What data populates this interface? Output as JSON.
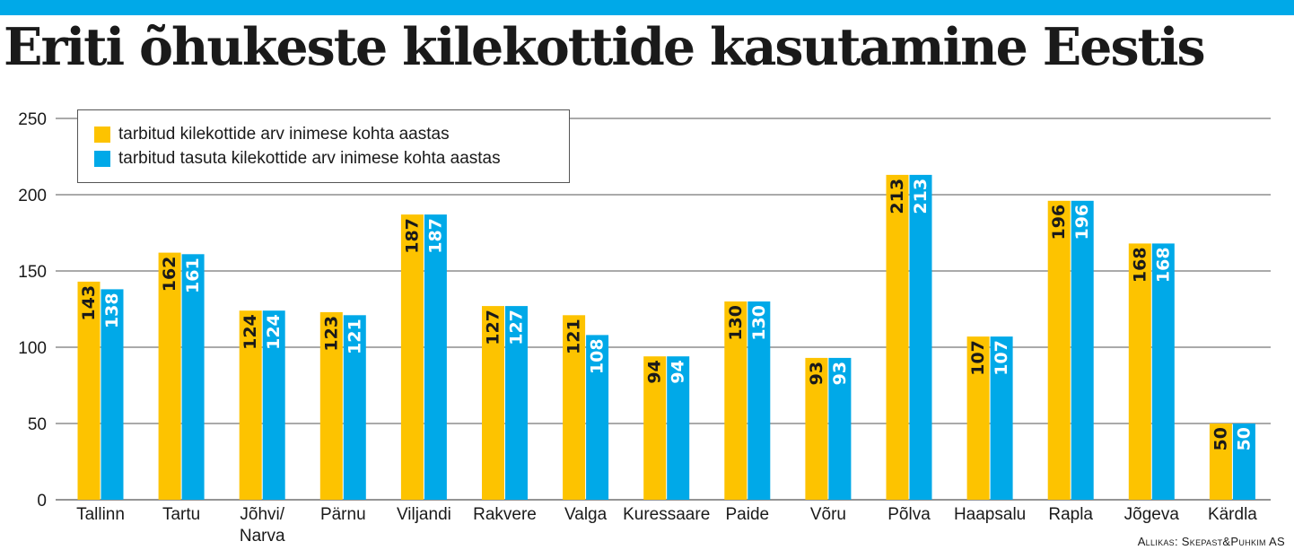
{
  "header": {
    "title": "Eriti õhukeste kilekottide kasutamine Eestis"
  },
  "colors": {
    "accent_bar": "#00a9e8",
    "series_yellow": "#fdc300",
    "series_blue": "#00a9e8",
    "grid": "#555555"
  },
  "legend": {
    "items": [
      {
        "label": "tarbitud kilekottide arv inimese kohta aastas",
        "color": "#fdc300"
      },
      {
        "label": "tarbitud tasuta kilekottide arv inimese kohta aastas",
        "color": "#00a9e8"
      }
    ]
  },
  "source": {
    "text": "Allikas: Skepast&Puhkim AS"
  },
  "chart_data": {
    "type": "bar",
    "title": "Eriti õhukeste kilekottide kasutamine Eestis",
    "categories": [
      "Tallinn",
      "Tartu",
      "Jõhvi/\nNarva",
      "Pärnu",
      "Viljandi",
      "Rakvere",
      "Valga",
      "Kuressaare",
      "Paide",
      "Võru",
      "Põlva",
      "Haapsalu",
      "Rapla",
      "Jõgeva",
      "Kärdla"
    ],
    "series": [
      {
        "name": "tarbitud kilekottide arv inimese kohta aastas",
        "color": "#fdc300",
        "label_color": "#1a1a1a",
        "values": [
          143,
          162,
          124,
          123,
          187,
          127,
          121,
          94,
          130,
          93,
          213,
          107,
          196,
          168,
          50
        ]
      },
      {
        "name": "tarbitud tasuta kilekottide arv inimese kohta aastas",
        "color": "#00a9e8",
        "label_color": "#ffffff",
        "values": [
          138,
          161,
          124,
          121,
          187,
          127,
          108,
          94,
          130,
          93,
          213,
          107,
          196,
          168,
          50
        ]
      }
    ],
    "yticks": [
      0,
      50,
      100,
      150,
      200,
      250
    ],
    "ylim": [
      0,
      250
    ],
    "xlabel": "",
    "ylabel": "",
    "grid": true,
    "legend_position": "top-left",
    "data_labels": "inside-top-rotated"
  }
}
